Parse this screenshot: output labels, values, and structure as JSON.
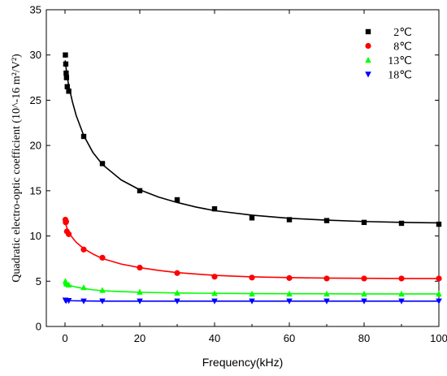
{
  "chart_data": {
    "type": "scatter",
    "xlabel": "Frequency(kHz)",
    "ylabel": "Quadratic electro-optic coefficient (10^-16 m²/V²)",
    "xlim": [
      -5,
      100
    ],
    "ylim": [
      0,
      35
    ],
    "xticks": [
      0,
      20,
      40,
      60,
      80,
      100
    ],
    "yticks": [
      0,
      5,
      10,
      15,
      20,
      25,
      30,
      35
    ],
    "legend_position": "top-right",
    "grid": false,
    "series": [
      {
        "name": "2℃",
        "color": "#000000",
        "marker": "square",
        "points": [
          [
            0.1,
            30.0
          ],
          [
            0.2,
            29.0
          ],
          [
            0.3,
            28.0
          ],
          [
            0.4,
            27.5
          ],
          [
            0.6,
            26.5
          ],
          [
            1,
            26.0
          ],
          [
            5,
            21.0
          ],
          [
            10,
            18.0
          ],
          [
            20,
            15.0
          ],
          [
            30,
            14.0
          ],
          [
            40,
            13.0
          ],
          [
            50,
            12.0
          ],
          [
            60,
            11.8
          ],
          [
            70,
            11.7
          ],
          [
            80,
            11.5
          ],
          [
            90,
            11.4
          ],
          [
            100,
            11.3
          ]
        ],
        "fit": [
          [
            0.05,
            29.4
          ],
          [
            0.5,
            27.8
          ],
          [
            1,
            26.6
          ],
          [
            2,
            24.8
          ],
          [
            3,
            23.3
          ],
          [
            5,
            21.1
          ],
          [
            7.5,
            19.2
          ],
          [
            10,
            17.9
          ],
          [
            15,
            16.2
          ],
          [
            20,
            15.1
          ],
          [
            25,
            14.3
          ],
          [
            30,
            13.7
          ],
          [
            35,
            13.2
          ],
          [
            40,
            12.8
          ],
          [
            50,
            12.3
          ],
          [
            60,
            11.95
          ],
          [
            70,
            11.75
          ],
          [
            80,
            11.6
          ],
          [
            90,
            11.5
          ],
          [
            100,
            11.45
          ]
        ]
      },
      {
        "name": "8℃",
        "color": "#ff0000",
        "marker": "circle",
        "points": [
          [
            0.1,
            11.8
          ],
          [
            0.2,
            11.5
          ],
          [
            0.3,
            11.6
          ],
          [
            0.5,
            10.5
          ],
          [
            1,
            10.2
          ],
          [
            5,
            8.5
          ],
          [
            10,
            7.6
          ],
          [
            20,
            6.5
          ],
          [
            30,
            5.9
          ],
          [
            40,
            5.5
          ],
          [
            50,
            5.4
          ],
          [
            60,
            5.35
          ],
          [
            70,
            5.3
          ],
          [
            80,
            5.3
          ],
          [
            90,
            5.3
          ],
          [
            100,
            5.3
          ]
        ],
        "fit": [
          [
            0.05,
            11.5
          ],
          [
            0.5,
            10.9
          ],
          [
            1,
            10.4
          ],
          [
            2,
            9.8
          ],
          [
            3,
            9.3
          ],
          [
            5,
            8.6
          ],
          [
            7.5,
            8.0
          ],
          [
            10,
            7.5
          ],
          [
            15,
            6.9
          ],
          [
            20,
            6.5
          ],
          [
            25,
            6.2
          ],
          [
            30,
            5.95
          ],
          [
            40,
            5.65
          ],
          [
            50,
            5.48
          ],
          [
            60,
            5.4
          ],
          [
            70,
            5.35
          ],
          [
            80,
            5.32
          ],
          [
            90,
            5.3
          ],
          [
            100,
            5.3
          ]
        ]
      },
      {
        "name": "13℃",
        "color": "#00ff00",
        "marker": "triangle-up",
        "points": [
          [
            0.1,
            5.0
          ],
          [
            0.3,
            4.8
          ],
          [
            0.5,
            4.7
          ],
          [
            1,
            4.6
          ],
          [
            5,
            4.3
          ],
          [
            10,
            4.0
          ],
          [
            20,
            3.8
          ],
          [
            30,
            3.7
          ],
          [
            40,
            3.65
          ],
          [
            50,
            3.6
          ],
          [
            60,
            3.6
          ],
          [
            70,
            3.6
          ],
          [
            80,
            3.6
          ],
          [
            90,
            3.6
          ],
          [
            100,
            3.6
          ]
        ],
        "fit": [
          [
            0.05,
            4.9
          ],
          [
            0.5,
            4.75
          ],
          [
            1,
            4.6
          ],
          [
            2,
            4.45
          ],
          [
            3,
            4.35
          ],
          [
            5,
            4.2
          ],
          [
            7.5,
            4.05
          ],
          [
            10,
            3.95
          ],
          [
            15,
            3.85
          ],
          [
            20,
            3.78
          ],
          [
            30,
            3.7
          ],
          [
            40,
            3.66
          ],
          [
            50,
            3.63
          ],
          [
            60,
            3.62
          ],
          [
            80,
            3.6
          ],
          [
            100,
            3.6
          ]
        ]
      },
      {
        "name": "18℃",
        "color": "#0000ff",
        "marker": "triangle-down",
        "points": [
          [
            0.1,
            2.9
          ],
          [
            0.3,
            2.85
          ],
          [
            1,
            2.85
          ],
          [
            5,
            2.8
          ],
          [
            10,
            2.8
          ],
          [
            20,
            2.8
          ],
          [
            30,
            2.8
          ],
          [
            40,
            2.8
          ],
          [
            50,
            2.8
          ],
          [
            60,
            2.8
          ],
          [
            70,
            2.8
          ],
          [
            80,
            2.8
          ],
          [
            90,
            2.8
          ],
          [
            100,
            2.8
          ]
        ],
        "fit": [
          [
            0.05,
            2.88
          ],
          [
            1,
            2.85
          ],
          [
            5,
            2.82
          ],
          [
            10,
            2.8
          ],
          [
            20,
            2.8
          ],
          [
            40,
            2.8
          ],
          [
            60,
            2.8
          ],
          [
            80,
            2.8
          ],
          [
            100,
            2.8
          ]
        ]
      }
    ]
  }
}
